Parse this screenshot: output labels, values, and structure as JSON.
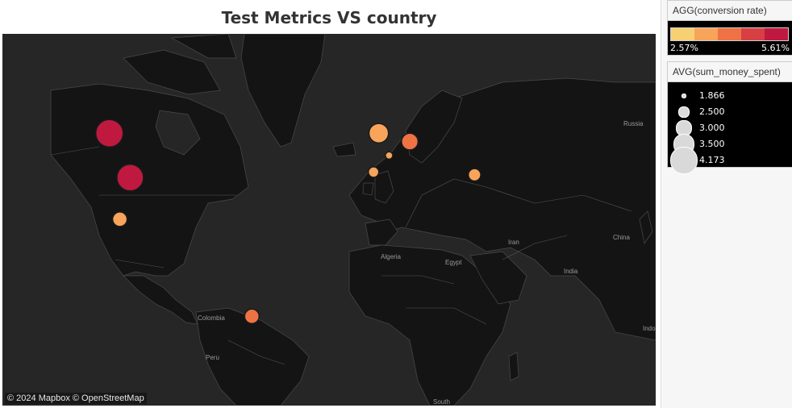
{
  "title": "Test Metrics VS country",
  "map": {
    "attribution": "© 2024 Mapbox © OpenStreetMap",
    "place_labels": [
      "Russia",
      "Iran",
      "China",
      "India",
      "Algeria",
      "Egypt",
      "Colombia",
      "Peru",
      "Indo",
      "South"
    ],
    "markers": [
      {
        "lat": 54,
        "lon": -106,
        "color": "#c0193f",
        "size": 4.173
      },
      {
        "lat": 38,
        "lon": -98,
        "color": "#c0193f",
        "size": 4.1
      },
      {
        "lat": 23,
        "lon": -102,
        "color": "#f8a45a",
        "size": 2.9
      },
      {
        "lat": -12,
        "lon": -51,
        "color": "#ef7245",
        "size": 2.9
      },
      {
        "lat": 54,
        "lon": -2,
        "color": "#f8a45a",
        "size": 3.4
      },
      {
        "lat": 51,
        "lon": 10,
        "color": "#ef7245",
        "size": 3.1
      },
      {
        "lat": 46,
        "lon": 2,
        "color": "#f8a45a",
        "size": 2.2
      },
      {
        "lat": 40,
        "lon": -4,
        "color": "#f8a45a",
        "size": 2.5
      },
      {
        "lat": 39,
        "lon": 35,
        "color": "#f8a45a",
        "size": 2.7
      }
    ]
  },
  "color_legend": {
    "title": "AGG(conversion rate)",
    "min_label": "2.57%",
    "max_label": "5.61%",
    "ramp": [
      "#f6d073",
      "#f8a45a",
      "#ef7245",
      "#d83f43",
      "#c0193f"
    ]
  },
  "size_legend": {
    "title": "AVG(sum_money_spent)",
    "entries": [
      {
        "label": "1.866",
        "value": 1.866
      },
      {
        "label": "2.500",
        "value": 2.5
      },
      {
        "label": "3.000",
        "value": 3.0
      },
      {
        "label": "3.500",
        "value": 3.5
      },
      {
        "label": "4.173",
        "value": 4.173
      }
    ]
  }
}
